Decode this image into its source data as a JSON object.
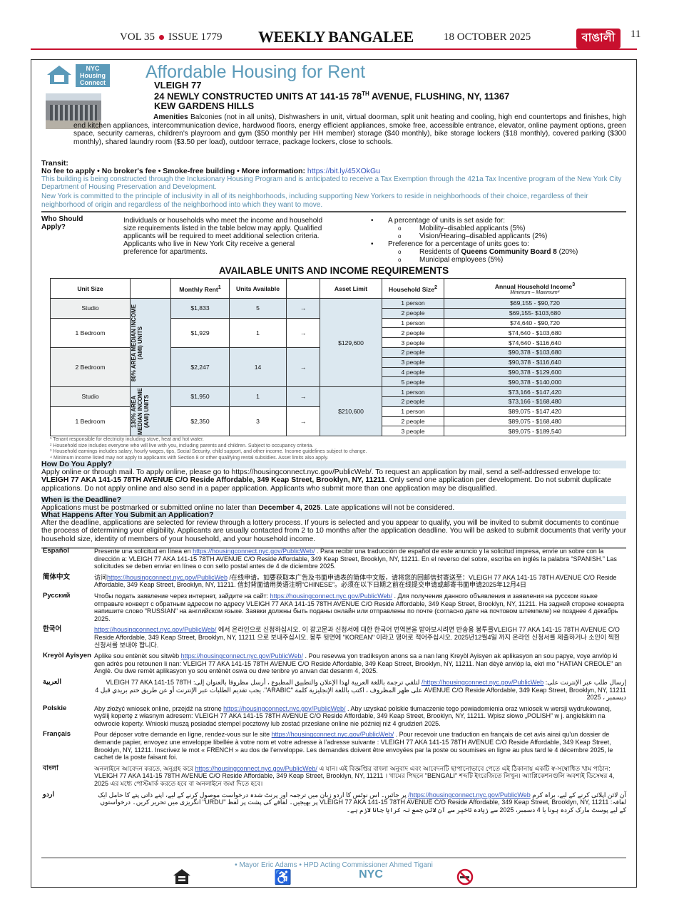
{
  "masthead": {
    "volume": "VOL 35",
    "issue": "ISSUE 1779",
    "paper": "WEEKLY BANGALEE",
    "date": "18 OCTOBER 2025",
    "logo_text": "বাঙালী",
    "page": "11",
    "accent": "#c8102e"
  },
  "ad": {
    "logo_text": [
      "NYC",
      "Housing",
      "Connect"
    ],
    "title": "Affordable Housing for Rent",
    "building": "VLEIGH 77",
    "address": "24 NEWLY CONSTRUCTED UNITS AT 141-15 78",
    "address_sup": "TH",
    "address_rest": " AVENUE, FLUSHING, NY, 11367",
    "neighborhood": "KEW GARDENS HILLS",
    "amenities_label": "Amenities",
    "amenities": "Balconies (not in all units), Dishwashers in unit, virtual doorman, split unit heating and cooling, high end countertops and finishes, high end kitchen appliances, intercommunication device, hardwood floors, energy efficient appliances, smoke free, accessible entrance, elevator, online payment options, green space, security cameras, children's playroom and gym ($50 monthly per HH member) storage ($40 monthly), bike storage lockers ($18 monthly), covered parking ($300 monthly), shared laundry room ($3.50 per load),  outdoor terrace, package lockers, close to schools.",
    "transit_label": "Transit:",
    "fees_line": "No fee to apply • No broker's fee • Smoke-free building • More information: ",
    "more_info_url": "https://bit.ly/45XOkGu",
    "program_text": "This building is being constructed through the Inclusionary Housing Program and is anticipated to receive a Tax Exemption through the 421a Tax Incentive program of the New York City Department of Housing Preservation and Development.",
    "inclusivity_text": "New York is committed to the principle of inclusivity in all of its neighborhoods, including supporting New Yorkers to reside in neighborhoods of their choice, regardless of their neighborhood of origin and regardless of the neighborhood into which they want to move.",
    "accent_color": "#5b9ab9"
  },
  "who": {
    "heading": "Who Should Apply?",
    "text": "Individuals or households who meet the income and household size requirements listed in the table below may apply. Qualified applicants will be required to meet additional selection criteria. Applicants who live in New York City receive a general preference for apartments.",
    "setaside": "A percentage of units is set aside for:",
    "setaside_items": [
      "Mobility–disabled applicants (5%)",
      "Vision/Hearing–disabled applicants (2%)"
    ],
    "preference": "Preference for a percentage of units goes to:",
    "pref_item1_pre": "Residents of ",
    "pref_item1_bold": "Queens Community Board 8",
    "pref_item1_post": " (20%)",
    "pref_item2": "Municipal employees (5%)"
  },
  "table": {
    "heading": "AVAILABLE UNITS AND INCOME REQUIREMENTS",
    "headers": {
      "unit_size": "Unit Size",
      "rent": "Monthly Rent",
      "rent_sup": "1",
      "units": "Units Available",
      "asset": "Asset Limit",
      "hh": "Household Size",
      "hh_sup": "2",
      "income": "Annual Household Income",
      "income_sup": "3",
      "income_sub": "Minimum – Maximum⁴"
    },
    "arrow": "→",
    "groups": [
      {
        "ami": "80% AREA MEDIAN INCOME (AMI) UNITS",
        "asset": "$129,600",
        "units": [
          {
            "size": "Studio",
            "rent": "$1,833",
            "available": "5",
            "incomes": [
              [
                "1 person",
                "$69,155 - $90,720"
              ],
              [
                "2 people",
                "$69,155- $103,680"
              ]
            ]
          },
          {
            "size": "1 Bedroom",
            "rent": "$1,929",
            "available": "1",
            "incomes": [
              [
                "1 person",
                "$74,640 - $90,720"
              ],
              [
                "2 people",
                "$74,640 - $103,680"
              ],
              [
                "3 people",
                "$74,640 - $116,640"
              ]
            ]
          },
          {
            "size": "2 Bedroom",
            "rent": "$2,247",
            "available": "14",
            "incomes": [
              [
                "2 people",
                "$90,378 - $103,680"
              ],
              [
                "3 people",
                "$90,378 - $116,640"
              ],
              [
                "4 people",
                "$90,378 - $129,600"
              ],
              [
                "5 people",
                "$90,378 - $140,000"
              ]
            ]
          }
        ]
      },
      {
        "ami": "130% AREA MEDIAN INCOME (AMI) UNITS",
        "asset": "$210,600",
        "units": [
          {
            "size": "Studio",
            "rent": "$1,950",
            "available": "1",
            "incomes": [
              [
                "1 person",
                "$73,166 - $147,420"
              ],
              [
                "2 people",
                "$73,166 - $168,480"
              ]
            ]
          },
          {
            "size": "1 Bedroom",
            "rent": "$2,350",
            "available": "3",
            "incomes": [
              [
                "1 person",
                "$89,075 - $147,420"
              ],
              [
                "2 people",
                "$89,075 - $168,480"
              ],
              [
                "3 people",
                "$89,075 - $189,540"
              ]
            ]
          }
        ]
      }
    ],
    "footnotes": [
      "¹ Tenant responsible for electricity including stove, heat and hot water.",
      "² Household size includes everyone who will live with you, including parents and children. Subject to occupancy criteria.",
      "³ Household earnings includes salary, hourly wages, tips, Social Security, child support, and other income. Income guidelines subject to change.",
      "⁴ Minimum income listed may not apply to applicants with Section 8 or other qualifying rental subsidies. Asset limits also apply."
    ]
  },
  "how": {
    "heading": "How Do You Apply?",
    "pre": "Apply online or through mail. To apply online, please go to https://housingconnect.nyc.gov/PublicWeb/.  To request an application by mail, send a self-addressed envelope to: ",
    "bold": "VLEIGH 77 AKA 141-15 78TH AVENUE C/O Reside Affordable, 349 Keap Street, Brooklyn, NY, 11211",
    "post": ". Only send one application per development. Do not submit duplicate applications. Do not apply online and also send in a paper application. Applicants who submit more than one application may be disqualified."
  },
  "deadline": {
    "heading": "When is the Deadline?",
    "pre": "Applications must be postmarked or submitted online no later than ",
    "bold": "December 4, 2025",
    "post": ". Late applications will not be considered."
  },
  "after": {
    "heading": "What Happens After You Submit an Application?",
    "text": "After the deadline, applications are selected for review through a lottery process. If yours is selected and you appear to qualify, you will be invited to submit documents to continue the process of determining your eligibility. Applicants are usually contacted from 2 to 10 months after the application deadline. You will be asked to submit documents that verify your household size, identity of members of your household, and your household income."
  },
  "languages": [
    {
      "name": "Español",
      "pre": "Presente una solicitud en línea en ",
      "url": "https://housingconnect.nyc.gov/PublicWeb/",
      "post": " . Para recibir una traducción de español de este anuncio y la solicitud impresa, envíe un sobre con la dirección a: VLEIGH 77 AKA 141-15 78TH AVENUE C/O Reside Affordable, 349 Keap Street, Brooklyn, NY, 11211. En el reverso del sobre, escriba en inglés la palabra “SPANISH.” Las solicitudes se deben enviar en línea o con sello postal antes de 4 de diciembre 2025."
    },
    {
      "name": "简体中文",
      "pre": "访问",
      "url": "https://housingconnect.nyc.gov/PublicWeb",
      "post": " /在线申请。如要获取本广告及书面申请表的简体中文版，请将您的回邮信封寄送至：VLEIGH 77 AKA 141-15 78TH AVENUE C/O Reside Affordable, 349 Keap Street, Brooklyn, NY, 11211. 信封背面请用英语注明“CHINESE”。必须在以下日期之前在线提交申请或邮寄书面申请2025年12月4日"
    },
    {
      "name": "Русский",
      "pre": "Чтобы подать заявление через интернет, зайдите на сайт: ",
      "url": "https://housingconnect.nyc.gov/PublicWeb/",
      "post": " . Для получения данного объявления и заявления на русском языке отправьте конверт с обратным адресом по адресу VLEIGH 77 AKA 141-15 78TH AVENUE C/O Reside Affordable, 349 Keap Street, Brooklyn, NY, 11211. На задней стороне конверта напишите слово \"RUSSIAN\" на английском языке. Заявки должны быть поданы онлайн или отправлены по почте (согласно дате на почтовом штемпеле) не позднее 4 декабрь 2025."
    },
    {
      "name": "한국어",
      "pre": "",
      "url": "https://housingconnect.nyc.gov/PublicWeb/",
      "post": " 에서 온라인으로 신청하십시오. 이 광고문과 신청서에 대한 한국어 번역본을 받아보시려면 반송용 봉투를VLEIGH 77 AKA 141-15 78TH AVENUE C/O Reside Affordable, 349 Keap Street, Brooklyn, NY, 11211 으로 보내주십시오. 봉투 뒷면에 \"KOREAN\" 이라고 영어로 적어주십시오. 2025년12월4일 까지 온라인 신청서를 제출하거나 소인이 찍힌 신청서를 보내야 합니다."
    },
    {
      "name": "Kreyòl Ayisyen",
      "pre": "Aplike sou entènèt sou sitwèb ",
      "url": "https://housingconnect.nyc.gov/PublicWeb/",
      "post": " . Pou resevwa yon tradiksyon anons sa a nan lang Kreyòl Ayisyen ak aplikasyon an sou papye, voye anvlòp ki gen adrès pou retounen li nan: VLEIGH 77 AKA 141-15 78TH AVENUE C/O Reside Affordable, 349 Keap Street, Brooklyn, NY, 11211. Nan dèyè anvlòp la, ekri mo \"HATIAN CREOLE\" an Anglè. Ou dwe remèt aplikasyon yo sou entènèt oswa ou dwe tenbre yo anvan dat desanm 4, 2025."
    },
    {
      "name": "العربية",
      "rtl": true,
      "pre": "إرسال طلب عبر الإنترنت على: ",
      "url": "https://housingconnect.nyc.gov/PublicWeb/",
      "post": " لتلقي ترجمة باللغة العربية لهذا الإعلان والتطبيق المطبوع ، أرسل مظروفا بالعنوان إلى: VLEIGH 77 AKA 141-15 78TH AVENUE C/O Reside Affordable, 349 Keap Street, Brooklyn, NY, 11211 على ظهر المظروف ، اكتب باللغة الإنجليزية كلمة \"ARABIC\". يجب تقديم الطلبات عبر الإنترنت أو عن طريق ختم بريدي قبل 4 ديسمبر ، 2025"
    },
    {
      "name": "Polskie",
      "pre": "Aby złożyć wniosek online, przejdź na stronę ",
      "url": "https://housingconnect.nyc.gov/PublicWeb/",
      "post": " . Aby uzyskać polskie tłumaczenie tego powiadomienia oraz wniosek w wersji wydrukowanej, wyślij kopertę z własnym adresem: VLEIGH 77 AKA 141-15 78TH AVENUE C/O Reside Affordable, 349 Keap Street, Brooklyn, NY, 11211. Wpisz słowo „POLISH” w j. angielskim na odwrocie koperty. Wnioski muszą posiadać stempel pocztowy lub zostać przesłane online nie później niż 4  grudzień 2025."
    },
    {
      "name": "Français",
      "pre": "Pour déposer votre demande en ligne, rendez-vous sur le site ",
      "url": "https://housingconnect.nyc.gov/PublicWeb/",
      "post": " . Pour recevoir une traduction en français de cet avis ainsi qu’un dossier de demande papier, envoyez une enveloppe libellée à votre nom et votre adresse à l’adresse suivante : VLEIGH 77 AKA 141-15 78TH AVENUE C/O Reside Affordable, 349 Keap Street, Brooklyn, NY, 11211. Inscrivez le mot « FRENCH » au dos de l’enveloppe. Les demandes doivent être envoyées par la poste ou soumises en ligne au plus tard le 4 décembre 2025, le cachet de la poste faisant foi."
    },
    {
      "name": "বাংলা",
      "pre": "অনলাইনে আবেদন করতে, অনুগ্রহ করে ",
      "url": "https://housingconnect.nyc.gov/PublicWeb/",
      "post": " এ যান। এই বিজ্ঞপ্তির বাংলা অনুবাদ এবং আবেদনটি ছাপানোভাবে পেতে এই ঠিকানায় একটি স্ব-সম্বোধিত খাম পাঠান: VLEIGH 77 AKA 141-15 78TH AVENUE C/O Reside Affordable, 349 Keap Street, Brooklyn, NY, 11211 । খামের পিছনে \"BENGALI\" শব্দটি ইংরেজিতে লিখুন। অ্যাপ্লিকেশনগুলি অবশ্যই ডিসেম্বর 4, 2025 এর মধ্যে পোস্টমার্ক করতে হবে বা অনলাইনে জমা দিতে হবে।"
    },
    {
      "name": "اردو",
      "rtl": true,
      "pre": "آن لائن اپلائی کرنے کے لیے، براہ کرم ",
      "url": "https://housingconnect.nyc.gov/PublicWeb/",
      "post": " پر جائیں۔ اس نوٹس کا اردو زبان میں ترجمہ اور پرنٹ شدہ درخواست موصول کرنے کے لیے، اپنے ذاتی پتے کا حامل ایک لفافہ: VLEIGH 77 AKA 141-15 78TH AVENUE C/O Reside Affordable, 349 Keap Street, Brooklyn, NY, 11211 پر بھیجیں۔ لفافے کی پشت پر لفظ \"URDU\" انگریزی میں تحریر کریں۔ درخواستوں کے لیے پوسٹ مارک کردہ ہونا یا 4 دسمبر، 2025 سے زیادہ تاخیر سے آن لائن جمع نہ کرایا جانا لازم ہے۔"
    }
  ],
  "footer": {
    "officials": "• Mayor Eric Adams • HPD Acting Commissioner Ahmed Tigani",
    "hpd_logo_text": "NYC",
    "icons": [
      "equal-housing-icon",
      "accessibility-icon",
      "nyc-hpd-logo",
      "no-smoking-icon"
    ]
  }
}
